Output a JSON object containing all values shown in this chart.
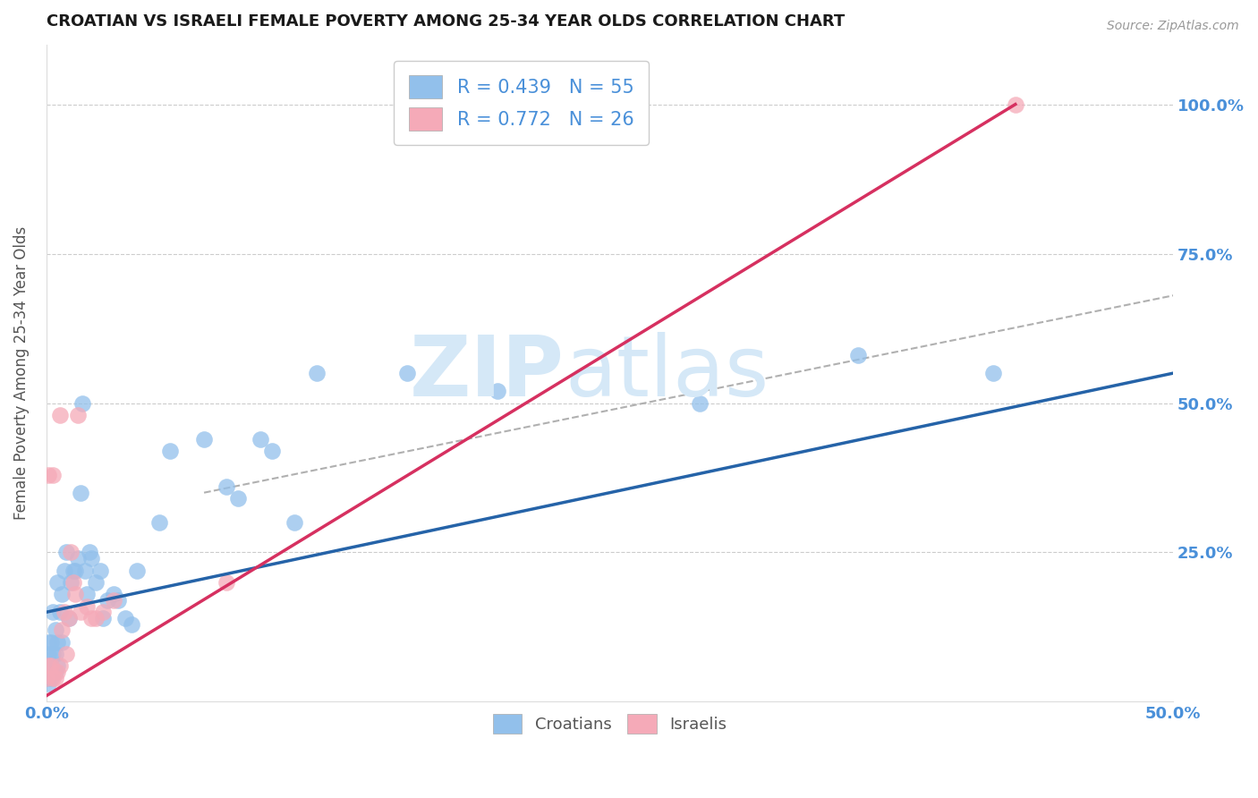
{
  "title": "CROATIAN VS ISRAELI FEMALE POVERTY AMONG 25-34 YEAR OLDS CORRELATION CHART",
  "source": "Source: ZipAtlas.com",
  "ylabel": "Female Poverty Among 25-34 Year Olds",
  "xlim": [
    0.0,
    0.5
  ],
  "ylim": [
    0.0,
    1.1
  ],
  "croatian_color": "#92c0eb",
  "israeli_color": "#f5aab8",
  "croatian_line_color": "#2563a8",
  "israeli_line_color": "#d63060",
  "croatian_R": 0.439,
  "croatian_N": 55,
  "israeli_R": 0.772,
  "israeli_N": 26,
  "axis_color": "#4a90d9",
  "grid_color": "#cccccc",
  "background_color": "#ffffff",
  "title_color": "#1a1a1a",
  "source_color": "#999999",
  "ylabel_color": "#555555",
  "watermark_color": "#d5e8f7",
  "croatian_x": [
    0.0,
    0.001,
    0.001,
    0.001,
    0.001,
    0.002,
    0.002,
    0.002,
    0.003,
    0.003,
    0.004,
    0.004,
    0.004,
    0.005,
    0.005,
    0.005,
    0.006,
    0.007,
    0.007,
    0.008,
    0.009,
    0.01,
    0.011,
    0.012,
    0.013,
    0.014,
    0.015,
    0.016,
    0.017,
    0.018,
    0.019,
    0.02,
    0.022,
    0.024,
    0.025,
    0.027,
    0.03,
    0.032,
    0.035,
    0.038,
    0.04,
    0.05,
    0.055,
    0.07,
    0.08,
    0.085,
    0.095,
    0.1,
    0.11,
    0.12,
    0.16,
    0.2,
    0.29,
    0.36,
    0.42
  ],
  "croatian_y": [
    0.04,
    0.03,
    0.06,
    0.08,
    0.1,
    0.04,
    0.06,
    0.1,
    0.08,
    0.15,
    0.05,
    0.08,
    0.12,
    0.06,
    0.1,
    0.2,
    0.15,
    0.1,
    0.18,
    0.22,
    0.25,
    0.14,
    0.2,
    0.22,
    0.22,
    0.24,
    0.35,
    0.5,
    0.22,
    0.18,
    0.25,
    0.24,
    0.2,
    0.22,
    0.14,
    0.17,
    0.18,
    0.17,
    0.14,
    0.13,
    0.22,
    0.3,
    0.42,
    0.44,
    0.36,
    0.34,
    0.44,
    0.42,
    0.3,
    0.55,
    0.55,
    0.52,
    0.5,
    0.58,
    0.55
  ],
  "israeli_x": [
    0.0,
    0.001,
    0.001,
    0.002,
    0.003,
    0.003,
    0.004,
    0.005,
    0.006,
    0.006,
    0.007,
    0.008,
    0.009,
    0.01,
    0.011,
    0.012,
    0.013,
    0.014,
    0.015,
    0.018,
    0.02,
    0.022,
    0.025,
    0.03,
    0.08,
    0.43
  ],
  "israeli_y": [
    0.04,
    0.06,
    0.38,
    0.06,
    0.04,
    0.38,
    0.04,
    0.05,
    0.06,
    0.48,
    0.12,
    0.15,
    0.08,
    0.14,
    0.25,
    0.2,
    0.18,
    0.48,
    0.15,
    0.16,
    0.14,
    0.14,
    0.15,
    0.17,
    0.2,
    1.0
  ],
  "cr_line_x": [
    0.0,
    0.5
  ],
  "cr_line_y": [
    0.15,
    0.55
  ],
  "is_line_x": [
    0.0,
    0.43
  ],
  "is_line_y": [
    0.01,
    1.0
  ],
  "dash_line_x": [
    0.07,
    0.5
  ],
  "dash_line_y": [
    0.35,
    0.68
  ]
}
